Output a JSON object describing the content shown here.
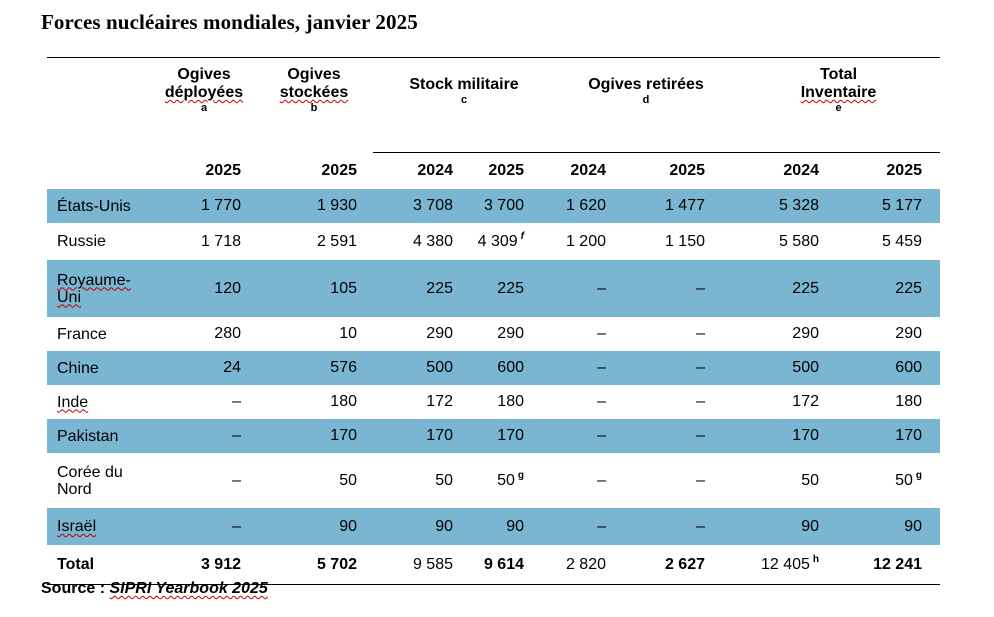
{
  "title": "Forces nucléaires mondiales, janvier 2025",
  "groups": [
    {
      "line1": "Ogives",
      "line2": "déployées",
      "sup": "a"
    },
    {
      "line1": "Ogives",
      "line2": "stockées",
      "sup": "b"
    },
    {
      "line1": "Stock militaire",
      "line2": "",
      "sup": "c"
    },
    {
      "line1": "Ogives retirées",
      "line2": "",
      "sup": "d"
    },
    {
      "line1": "Total",
      "line2": "Inventaire",
      "sup": "e"
    }
  ],
  "years": [
    "2025",
    "2025",
    "2024",
    "2025",
    "2024",
    "2025",
    "2024",
    "2025"
  ],
  "rows": [
    {
      "country": [
        "États-Unis"
      ],
      "values": [
        "1 770",
        "1 930",
        "3 708",
        "3 700",
        "1 620",
        "1 477",
        "5 328",
        "5 177"
      ]
    },
    {
      "country": [
        "Russie"
      ],
      "values": [
        "1 718",
        "2 591",
        "4 380",
        "4 309",
        "1 200",
        "1 150",
        "5 580",
        "5 459"
      ],
      "fn": {
        "3": "f"
      }
    },
    {
      "country": [
        "Royaume-",
        "Uni"
      ],
      "values": [
        "120",
        "105",
        "225",
        "225",
        "–",
        "–",
        "225",
        "225"
      ]
    },
    {
      "country": [
        "France"
      ],
      "values": [
        "280",
        "10",
        "290",
        "290",
        "–",
        "–",
        "290",
        "290"
      ]
    },
    {
      "country": [
        "Chine"
      ],
      "values": [
        "24",
        "576",
        "500",
        "600",
        "–",
        "–",
        "500",
        "600"
      ]
    },
    {
      "country": [
        "Inde"
      ],
      "values": [
        "–",
        "180",
        "172",
        "180",
        "–",
        "–",
        "172",
        "180"
      ]
    },
    {
      "country": [
        "Pakistan"
      ],
      "values": [
        "–",
        "170",
        "170",
        "170",
        "–",
        "–",
        "170",
        "170"
      ]
    },
    {
      "country": [
        "Corée du",
        "Nord"
      ],
      "values": [
        "–",
        "50",
        "50",
        "50",
        "–",
        "–",
        "50",
        "50"
      ],
      "fn": {
        "3": "g",
        "7": "g"
      }
    },
    {
      "country": [
        "Israël"
      ],
      "values": [
        "–",
        "90",
        "90",
        "90",
        "–",
        "–",
        "90",
        "90"
      ]
    }
  ],
  "total": {
    "label": "Total",
    "values": [
      "3 912",
      "5 702",
      "9 585",
      "9 614",
      "2 820",
      "2 627",
      "12 405",
      "12 241"
    ],
    "fn": {
      "6": "h"
    }
  },
  "source": {
    "prefix": "Source : ",
    "publication": "SIPRI Yearbook 2025"
  },
  "colors": {
    "row_shade": "#7ab6d2"
  }
}
